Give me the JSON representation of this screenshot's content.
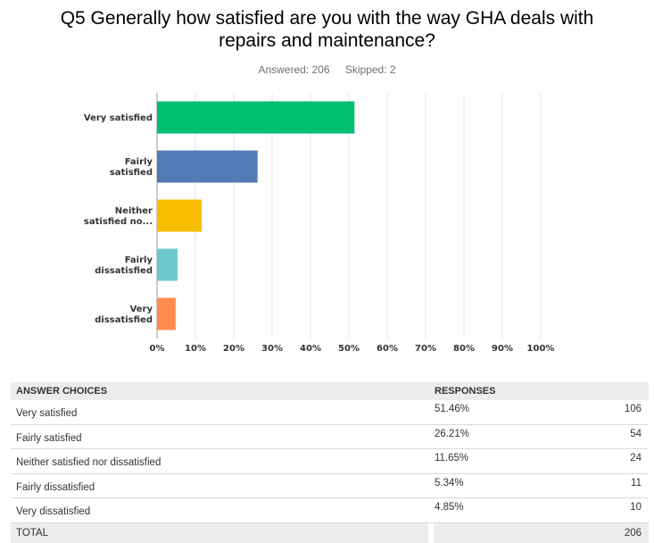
{
  "header": {
    "title_line1": "Q5 Generally how satisfied are you with the way GHA deals with",
    "title_line2": "repairs and maintenance?",
    "answered": "Answered: 206",
    "skipped": "Skipped: 2"
  },
  "chart_data": {
    "type": "bar",
    "orientation": "horizontal",
    "title": "Q5 Generally how satisfied are you with the way GHA deals with repairs and maintenance?",
    "categories": [
      [
        "Very satisfied"
      ],
      [
        "Fairly",
        "satisfied"
      ],
      [
        "Neither",
        "satisfied no..."
      ],
      [
        "Fairly",
        "dissatisfied"
      ],
      [
        "Very",
        "dissatisfied"
      ]
    ],
    "values": [
      51.46,
      26.21,
      11.65,
      5.34,
      4.85
    ],
    "colors": [
      "#00bf6f",
      "#507cb6",
      "#f9be00",
      "#6bc8cd",
      "#ff8b4f"
    ],
    "xlim": [
      0,
      100
    ],
    "xticks": [
      "0%",
      "10%",
      "20%",
      "30%",
      "40%",
      "50%",
      "60%",
      "70%",
      "80%",
      "90%",
      "100%"
    ],
    "grid": true
  },
  "table": {
    "headers": {
      "choice": "ANSWER CHOICES",
      "responses": "RESPONSES"
    },
    "rows": [
      {
        "choice": "Very satisfied",
        "pct": "51.46%",
        "count": "106"
      },
      {
        "choice": "Fairly satisfied",
        "pct": "26.21%",
        "count": "54"
      },
      {
        "choice": "Neither satisfied nor dissatisfied",
        "pct": "11.65%",
        "count": "24"
      },
      {
        "choice": "Fairly dissatisfied",
        "pct": "5.34%",
        "count": "11"
      },
      {
        "choice": "Very dissatisfied",
        "pct": "4.85%",
        "count": "10"
      }
    ],
    "total": {
      "label": "TOTAL",
      "count": "206"
    }
  }
}
